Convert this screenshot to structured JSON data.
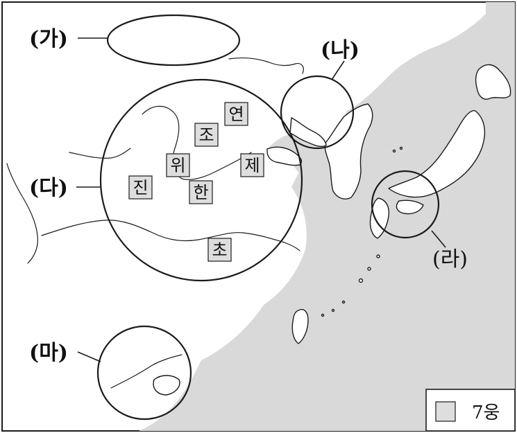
{
  "region_labels": {
    "ga": "(가)",
    "na": "(나)",
    "da": "(다)",
    "ra": "(라)",
    "ma": "(마)"
  },
  "states": {
    "yeon": "연",
    "jo": "조",
    "wi": "위",
    "je": "제",
    "jin": "진",
    "han": "한",
    "cho": "초"
  },
  "legend": {
    "label": "7웅"
  },
  "colors": {
    "sea": "#d9d9d9",
    "land": "#ffffff",
    "state_box": "#dedede"
  }
}
